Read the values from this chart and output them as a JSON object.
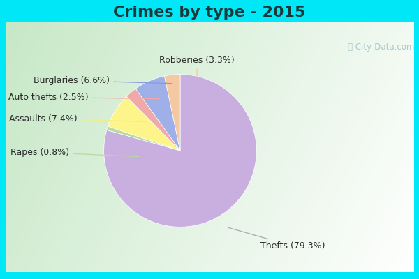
{
  "title": "Crimes by type - 2015",
  "labels": [
    "Thefts",
    "Rapes",
    "Assaults",
    "Auto thefts",
    "Burglaries",
    "Robberies"
  ],
  "values": [
    79.3,
    0.8,
    7.4,
    2.5,
    6.6,
    3.3
  ],
  "colors": [
    "#c9aee0",
    "#b8dba0",
    "#fdf48a",
    "#f0a8a8",
    "#9fb0e8",
    "#f4c8a0"
  ],
  "bg_cyan": "#00e8f8",
  "bg_green_light": "#c8e8c8",
  "bg_white": "#e8f4f0",
  "title_fontsize": 16,
  "label_fontsize": 9,
  "startangle": 90,
  "watermark": "@City-Data.com",
  "watermark_color": "#aac8cc"
}
